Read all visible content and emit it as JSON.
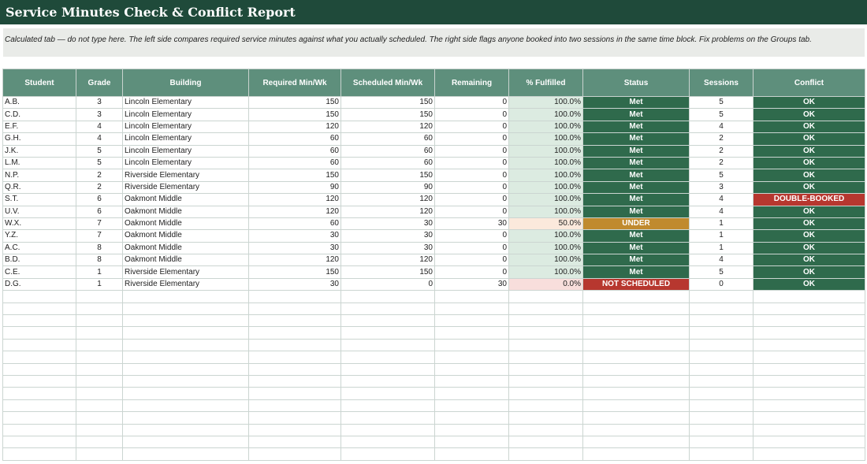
{
  "title": "Service Minutes Check & Conflict Report",
  "note": "Calculated tab — do not type here. The left side compares required service minutes against what you actually scheduled. The right side flags anyone booked into two sessions in the same time block. Fix problems on the Groups tab.",
  "headers": [
    "Student",
    "Grade",
    "Building",
    "Required Min/Wk",
    "Scheduled Min/Wk",
    "Remaining",
    "% Fulfilled",
    "Status",
    "Sessions",
    "Conflict"
  ],
  "colors": {
    "header": "#5e8f7c",
    "title_bar": "#1f4a3a",
    "met": "#2f6a4c",
    "under": "#c08a2e",
    "alert": "#b7372f"
  },
  "rows": [
    {
      "student": "A.B.",
      "grade": "3",
      "building": "Lincoln Elementary",
      "required": "150",
      "scheduled": "150",
      "remaining": "0",
      "pct": "100.0%",
      "status": "Met",
      "sessions": "5",
      "conflict": "OK"
    },
    {
      "student": "C.D.",
      "grade": "3",
      "building": "Lincoln Elementary",
      "required": "150",
      "scheduled": "150",
      "remaining": "0",
      "pct": "100.0%",
      "status": "Met",
      "sessions": "5",
      "conflict": "OK"
    },
    {
      "student": "E.F.",
      "grade": "4",
      "building": "Lincoln Elementary",
      "required": "120",
      "scheduled": "120",
      "remaining": "0",
      "pct": "100.0%",
      "status": "Met",
      "sessions": "4",
      "conflict": "OK"
    },
    {
      "student": "G.H.",
      "grade": "4",
      "building": "Lincoln Elementary",
      "required": "60",
      "scheduled": "60",
      "remaining": "0",
      "pct": "100.0%",
      "status": "Met",
      "sessions": "2",
      "conflict": "OK"
    },
    {
      "student": "J.K.",
      "grade": "5",
      "building": "Lincoln Elementary",
      "required": "60",
      "scheduled": "60",
      "remaining": "0",
      "pct": "100.0%",
      "status": "Met",
      "sessions": "2",
      "conflict": "OK"
    },
    {
      "student": "L.M.",
      "grade": "5",
      "building": "Lincoln Elementary",
      "required": "60",
      "scheduled": "60",
      "remaining": "0",
      "pct": "100.0%",
      "status": "Met",
      "sessions": "2",
      "conflict": "OK"
    },
    {
      "student": "N.P.",
      "grade": "2",
      "building": "Riverside Elementary",
      "required": "150",
      "scheduled": "150",
      "remaining": "0",
      "pct": "100.0%",
      "status": "Met",
      "sessions": "5",
      "conflict": "OK"
    },
    {
      "student": "Q.R.",
      "grade": "2",
      "building": "Riverside Elementary",
      "required": "90",
      "scheduled": "90",
      "remaining": "0",
      "pct": "100.0%",
      "status": "Met",
      "sessions": "3",
      "conflict": "OK"
    },
    {
      "student": "S.T.",
      "grade": "6",
      "building": "Oakmont Middle",
      "required": "120",
      "scheduled": "120",
      "remaining": "0",
      "pct": "100.0%",
      "status": "Met",
      "sessions": "4",
      "conflict": "DOUBLE-BOOKED"
    },
    {
      "student": "U.V.",
      "grade": "6",
      "building": "Oakmont Middle",
      "required": "120",
      "scheduled": "120",
      "remaining": "0",
      "pct": "100.0%",
      "status": "Met",
      "sessions": "4",
      "conflict": "OK"
    },
    {
      "student": "W.X.",
      "grade": "7",
      "building": "Oakmont Middle",
      "required": "60",
      "scheduled": "30",
      "remaining": "30",
      "pct": "50.0%",
      "status": "UNDER",
      "sessions": "1",
      "conflict": "OK"
    },
    {
      "student": "Y.Z.",
      "grade": "7",
      "building": "Oakmont Middle",
      "required": "30",
      "scheduled": "30",
      "remaining": "0",
      "pct": "100.0%",
      "status": "Met",
      "sessions": "1",
      "conflict": "OK"
    },
    {
      "student": "A.C.",
      "grade": "8",
      "building": "Oakmont Middle",
      "required": "30",
      "scheduled": "30",
      "remaining": "0",
      "pct": "100.0%",
      "status": "Met",
      "sessions": "1",
      "conflict": "OK"
    },
    {
      "student": "B.D.",
      "grade": "8",
      "building": "Oakmont Middle",
      "required": "120",
      "scheduled": "120",
      "remaining": "0",
      "pct": "100.0%",
      "status": "Met",
      "sessions": "4",
      "conflict": "OK"
    },
    {
      "student": "C.E.",
      "grade": "1",
      "building": "Riverside Elementary",
      "required": "150",
      "scheduled": "150",
      "remaining": "0",
      "pct": "100.0%",
      "status": "Met",
      "sessions": "5",
      "conflict": "OK"
    },
    {
      "student": "D.G.",
      "grade": "1",
      "building": "Riverside Elementary",
      "required": "30",
      "scheduled": "0",
      "remaining": "30",
      "pct": "0.0%",
      "status": "NOT SCHEDULED",
      "sessions": "0",
      "conflict": "OK"
    }
  ]
}
